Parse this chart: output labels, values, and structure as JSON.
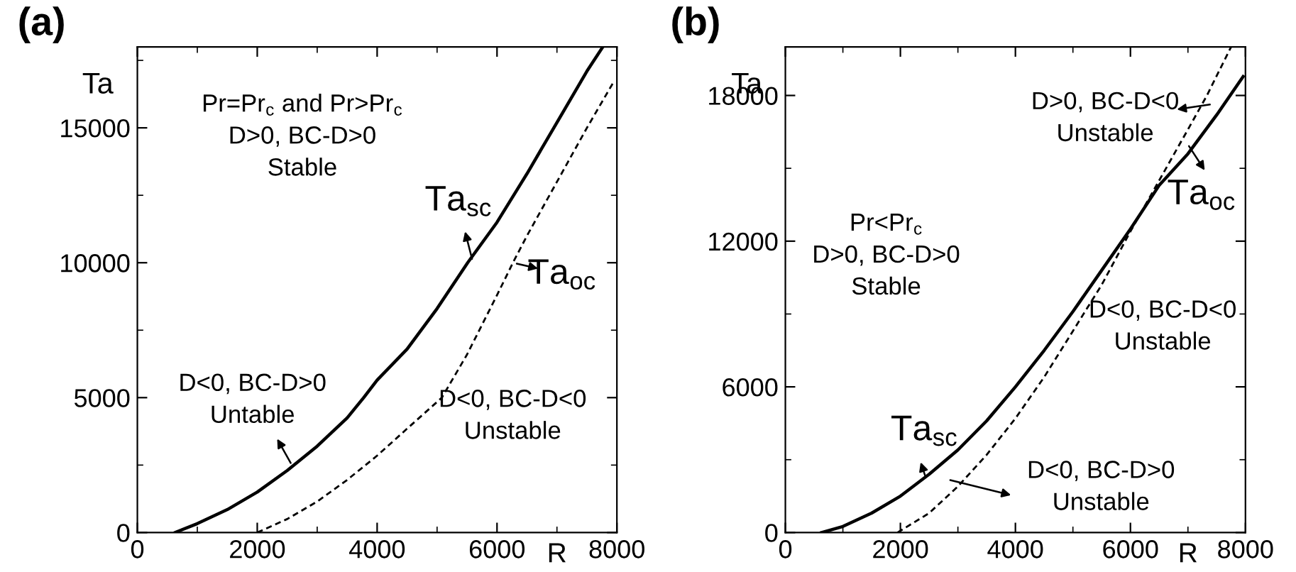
{
  "chart_data": [
    {
      "type": "line",
      "title": "(a)",
      "xlabel": "R",
      "ylabel": "Ta",
      "xlim": [
        0,
        8000
      ],
      "ylim": [
        0,
        18000
      ],
      "xticks": [
        0,
        2000,
        4000,
        6000,
        8000
      ],
      "yticks": [
        0,
        5000,
        10000,
        15000
      ],
      "grid": false,
      "legend": false,
      "series": [
        {
          "color": "#000000",
          "line_style": "solid",
          "x": [
            630,
            1000,
            1500,
            2000,
            2500,
            3000,
            3500,
            3775,
            4000,
            4500,
            5000,
            5510,
            6000,
            6500,
            7000,
            7500,
            7765
          ],
          "values": [
            0,
            330,
            850,
            1500,
            2300,
            3200,
            4250,
            5000,
            5650,
            6800,
            8300,
            10000,
            11500,
            13300,
            15200,
            17100,
            18000
          ]
        },
        {
          "color": "#000000",
          "line_style": "dashed",
          "x": [
            2000,
            2500,
            3000,
            3500,
            4000,
            4500,
            5080,
            5500,
            6000,
            6265,
            6500,
            7000,
            7500,
            7950
          ],
          "values": [
            0,
            500,
            1150,
            1950,
            2850,
            3850,
            5000,
            6600,
            8800,
            10000,
            11000,
            13000,
            15000,
            16720
          ]
        }
      ],
      "annotations": [
        "Pr=Pr$_{c}$ and Pr>Pr$_{c}$\nD>0, BC-D>0\nStable",
        "Ta$_{sc}$",
        "Ta$_{oc}$",
        "D<0, BC-D>0\nUntable",
        "D<0, BC-D<0\nUnstable"
      ]
    },
    {
      "type": "line",
      "title": "(b)",
      "xlabel": "R",
      "ylabel": "Ta",
      "xlim": [
        0,
        8000
      ],
      "ylim": [
        0,
        20000
      ],
      "xticks": [
        0,
        2000,
        4000,
        6000,
        8000
      ],
      "yticks": [
        0,
        6000,
        12000,
        18000
      ],
      "grid": false,
      "legend": false,
      "series": [
        {
          "color": "#000000",
          "line_style": "solid",
          "x": [
            630,
            1000,
            1500,
            2000,
            2500,
            3000,
            3500,
            4000,
            4500,
            5000,
            5500,
            6000,
            6500,
            7000,
            7500,
            7960
          ],
          "values": [
            0,
            250,
            800,
            1500,
            2400,
            3400,
            4600,
            6000,
            7500,
            9100,
            10800,
            12500,
            14300,
            15600,
            17200,
            18780
          ]
        },
        {
          "color": "#000000",
          "line_style": "dashed",
          "x": [
            1950,
            2500,
            3000,
            3500,
            4000,
            4500,
            5000,
            5500,
            6000,
            6500,
            7000,
            7330,
            7750
          ],
          "values": [
            0,
            800,
            1900,
            3200,
            4700,
            6400,
            8300,
            10200,
            12400,
            14500,
            16600,
            18000,
            20000
          ]
        }
      ],
      "annotations": [
        "D>0, BC-D<0\nUnstable",
        "Ta$_{oc}$",
        "Pr<Pr$_{c}$\nD>0, BC-D>0\nStable",
        "D<0, BC-D<0\nUnstable",
        "Ta$_{sc}$",
        "D<0, BC-D>0\nUnstable"
      ]
    }
  ]
}
